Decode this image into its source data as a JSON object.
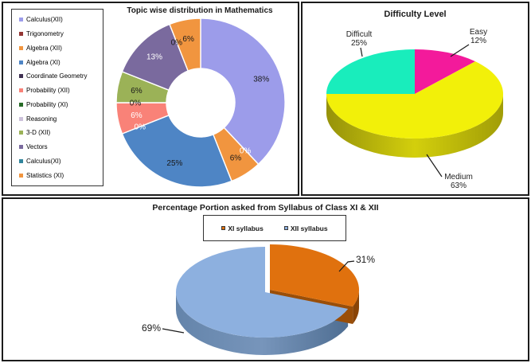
{
  "chart_data": [
    {
      "type": "donut",
      "title": "Topic wise distribution in Mathematics",
      "legend_position": "left",
      "categories": [
        "Calculus(XII)",
        "Trigonometry",
        "Algebra (XII)",
        "Algebra (XI)",
        "Coordinate Geometry",
        "Probability (XII)",
        "Probability (XI)",
        "Reasoning",
        "3-D (XII)",
        "Vectors",
        "Calculus(XI)",
        "Statistics (XI)"
      ],
      "values": [
        38,
        0,
        6,
        25,
        0,
        6,
        0,
        0,
        6,
        13,
        0,
        6
      ],
      "colors": [
        "#9C9CEA",
        "#943634",
        "#F1953F",
        "#4E85C5",
        "#403152",
        "#F98278",
        "#276B27",
        "#CCC1DA",
        "#9BB257",
        "#7A6A9E",
        "#31859C",
        "#F1953F"
      ],
      "data_labels": [
        "38%",
        "0%",
        "6%",
        "25%",
        "0%",
        "6%",
        "0%",
        null,
        "6%",
        "13%",
        "0%",
        "6%"
      ],
      "label_colors": [
        "#1a1a1a",
        "#ffffff",
        "#1a1a1a",
        "#1a1a1a",
        "#ffffff",
        "#ffffff",
        "#1a1a1a",
        null,
        "#1a1a1a",
        "#ffffff",
        "#1a1a1a",
        "#1a1a1a"
      ]
    },
    {
      "type": "pie",
      "pie_3d": true,
      "title": "Difficulty Level",
      "categories": [
        "Easy",
        "Medium",
        "Difficult"
      ],
      "values": [
        12,
        63,
        25
      ],
      "colors": [
        "#F31A9B",
        "#F2F009",
        "#19EDBC"
      ],
      "callouts": [
        {
          "label": "Difficult",
          "pct": "25%"
        },
        {
          "label": "Easy",
          "pct": "12%"
        },
        {
          "label": "Medium",
          "pct": "63%"
        }
      ]
    },
    {
      "type": "pie",
      "pie_3d": true,
      "title": "Percentage Portion asked from Syllabus of Class XI & XII",
      "legend_position": "top",
      "legend": [
        "XI syllabus",
        "XII syllabus"
      ],
      "categories": [
        "XI syllabus",
        "XII syllabus"
      ],
      "values": [
        31,
        69
      ],
      "colors": [
        "#E0710E",
        "#8DB0DF"
      ],
      "data_labels": [
        "31%",
        "69%"
      ],
      "exploded": [
        "XI syllabus"
      ]
    }
  ]
}
